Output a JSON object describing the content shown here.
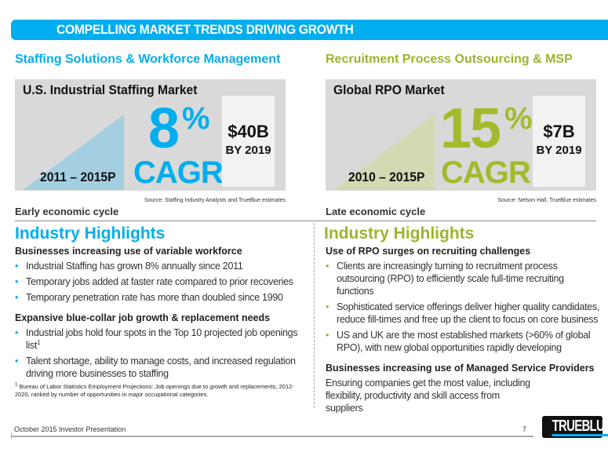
{
  "title": "COMPELLING MARKET TRENDS DRIVING GROWTH",
  "colors": {
    "blue": "#00aeef",
    "green": "#9bb52c"
  },
  "left": {
    "section": "Staffing Solutions & Workforce Management",
    "market": "U.S. Industrial Staffing Market",
    "years": "2011 – 2015P",
    "cagr_value": "8",
    "pct": "%",
    "cagr_label": "CAGR",
    "size": "$40B",
    "by": "BY 2019",
    "source": "Source:  Staffing Industry Analysts and TrueBlue estimates",
    "cycle": "Early economic cycle",
    "highlights": "Industry Highlights",
    "sub1": "Businesses increasing use of variable workforce",
    "bullets1": [
      "Industrial Staffing has grown 8% annually since 2011",
      "Temporary jobs added at faster rate compared to prior recoveries",
      "Temporary penetration rate has more than doubled since 1990"
    ],
    "sub2": "Expansive blue-collar job growth & replacement needs",
    "bullets2": [
      "Industrial jobs hold four spots in the Top 10 projected job openings list",
      "Talent shortage, ability to manage costs, and increased regulation driving more businesses to staffing"
    ],
    "sup": "1",
    "footnote": "Bureau of Labor Statistics Employment Projections: Job openings due to growth and replacements, 2012-2020, ranked by number of opportunities in major occupational categories."
  },
  "right": {
    "section": "Recruitment Process Outsourcing & MSP",
    "market": "Global RPO Market",
    "years": "2010 – 2015P",
    "cagr_value": "15",
    "pct": "%",
    "cagr_label": "CAGR",
    "size": "$7B",
    "by": "BY 2019",
    "source": "Source:  Nelson Hall, TrueBlue estimates",
    "cycle": "Late economic cycle",
    "highlights": "Industry Highlights",
    "sub1": "Use of RPO surges on recruiting challenges",
    "bullets1": [
      "Clients are increasingly turning to recruitment process outsourcing (RPO) to efficiently scale full-time recruiting functions",
      "Sophisticated service offerings deliver higher quality candidates, reduce fill-times and free up the client to focus on core business",
      "US and UK are the most established markets (>60% of global RPO), with new global opportunities rapidly developing"
    ],
    "sub2": "Businesses increasing use of Managed Service Providers",
    "text2": "Ensuring companies get the most value, including flexibility, productivity and skill access from suppliers"
  },
  "footer": {
    "label": "October 2015 Investor Presentation",
    "page": "7",
    "logo": "TRUEBLUE"
  }
}
